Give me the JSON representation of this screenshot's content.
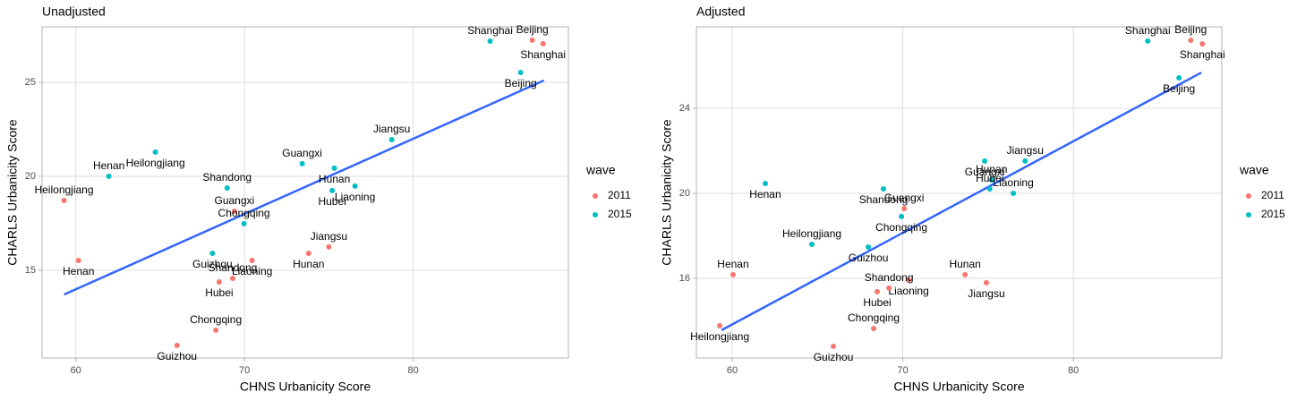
{
  "chart_data": [
    {
      "type": "scatter",
      "title": "Unadjusted",
      "xlabel": "CHNS Urbanicity Score",
      "ylabel": "CHARLS Urbanicity Score",
      "xlim": [
        58,
        89.2
      ],
      "ylim": [
        10.33,
        27.95
      ],
      "xticks": [
        60,
        70,
        80
      ],
      "yticks": [
        15,
        20,
        25
      ],
      "grid": true,
      "legend_title": "wave",
      "series": [
        {
          "name": "2011",
          "color": "#f8766d",
          "labels": [
            "Beijing",
            "Shanghai",
            "Heilongjiang",
            "Henan",
            "Guangxi",
            "Liaoning",
            "Jiangsu",
            "Hunan",
            "Shandong",
            "Hubei",
            "Chongqing",
            "Guizhou"
          ],
          "x": [
            87.06,
            87.7,
            59.3,
            60.16,
            69.4,
            70.45,
            75.0,
            73.8,
            69.3,
            68.5,
            68.3,
            66.0
          ],
          "y": [
            27.24,
            27.05,
            18.71,
            15.52,
            18.14,
            15.52,
            16.24,
            15.9,
            14.57,
            14.38,
            11.81,
            11.0
          ]
        },
        {
          "name": "2015",
          "color": "#00bfc4",
          "labels": [
            "Shanghai",
            "Beijing",
            "Jiangsu",
            "Heilongjiang",
            "Guangxi",
            "Hunan",
            "Henan",
            "Liaoning",
            "Shandong",
            "Hubei",
            "Chongqing",
            "Guizhou"
          ],
          "x": [
            84.56,
            86.37,
            78.73,
            64.72,
            73.42,
            75.33,
            61.96,
            76.55,
            68.97,
            75.2,
            69.97,
            68.1
          ],
          "y": [
            27.19,
            25.52,
            21.95,
            21.29,
            20.67,
            20.43,
            20.0,
            19.48,
            19.38,
            19.24,
            17.48,
            15.9
          ]
        }
      ],
      "fit": {
        "color": "#3366ff",
        "x": [
          59.31,
          87.75
        ],
        "y": [
          13.71,
          25.1
        ]
      }
    },
    {
      "type": "scatter",
      "title": "Adjusted",
      "xlabel": "CHNS Urbanicity Score",
      "ylabel": "CHARLS Urbanicity Score",
      "xlim": [
        57.9,
        88.7
      ],
      "ylim": [
        12.25,
        27.83
      ],
      "xticks": [
        60,
        70,
        80
      ],
      "yticks": [
        16,
        20,
        24
      ],
      "grid": true,
      "legend_title": "wave",
      "series": [
        {
          "name": "2011",
          "color": "#f8766d",
          "labels": [
            "Beijing",
            "Shanghai",
            "Henan",
            "Heilongjiang",
            "Guangxi",
            "Liaoning",
            "Hunan",
            "Jiangsu",
            "Shandong",
            "Hubei",
            "Chongqing",
            "Guizhou"
          ],
          "x": [
            86.88,
            87.56,
            60.05,
            59.27,
            70.08,
            70.34,
            73.65,
            74.9,
            69.19,
            68.5,
            68.29,
            65.93
          ],
          "y": [
            27.2,
            27.03,
            16.17,
            13.77,
            19.28,
            15.92,
            16.17,
            15.79,
            15.54,
            15.37,
            13.64,
            12.8
          ]
        },
        {
          "name": "2015",
          "color": "#00bfc4",
          "labels": [
            "Shanghai",
            "Beijing",
            "Jiangsu",
            "Guangxi",
            "Hunan",
            "Henan",
            "Liaoning",
            "Shandong",
            "Hubei",
            "Chongqing",
            "Heilongjiang",
            "Guizhou"
          ],
          "x": [
            84.36,
            86.19,
            77.17,
            74.8,
            75.2,
            61.94,
            76.48,
            68.87,
            75.1,
            69.92,
            64.67,
            67.98
          ],
          "y": [
            27.16,
            25.43,
            21.52,
            21.52,
            20.63,
            20.46,
            20.0,
            20.21,
            20.21,
            18.91,
            17.6,
            17.47
          ]
        }
      ],
      "fit": {
        "color": "#3366ff",
        "x": [
          59.37,
          87.5
        ],
        "y": [
          13.56,
          25.68
        ]
      }
    }
  ]
}
